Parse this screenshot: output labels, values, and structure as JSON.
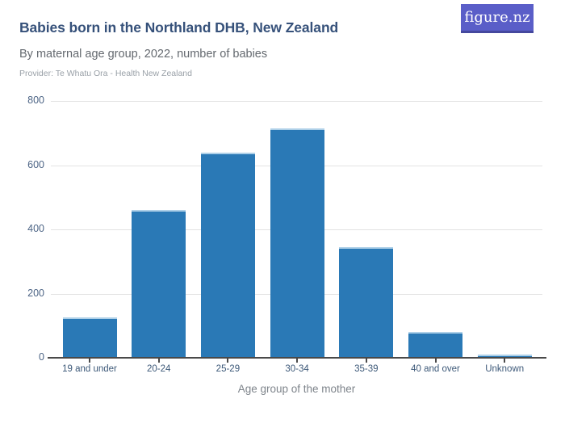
{
  "header": {
    "title": "Babies born in the Northland DHB, New Zealand",
    "subtitle": "By maternal age group, 2022, number of babies",
    "provider": "Provider: Te Whatu Ora - Health New Zealand"
  },
  "logo": {
    "text": "figure.nz"
  },
  "colors": {
    "bar": "#2a79b6",
    "bar_top_edge": "#aed0e8",
    "gridline": "#e3e3e3",
    "axis_line": "#494949",
    "title_text": "#36517a",
    "y_tick_label": "#4c6485",
    "x_tick_label": "#3c5878",
    "axis_title_text": "#7e848b",
    "logo_background": "#5a5ec8"
  },
  "chart_data": {
    "type": "bar",
    "title": "Babies born in the Northland DHB, New Zealand",
    "subtitle": "By maternal age group, 2022, number of babies",
    "categories": [
      "19 and under",
      "20-24",
      "25-29",
      "30-34",
      "35-39",
      "40 and over",
      "Unknown"
    ],
    "values": [
      125,
      460,
      640,
      715,
      345,
      80,
      10
    ],
    "xlabel": "Age group of the mother",
    "ylabel": "",
    "ylim": [
      0,
      800
    ],
    "yticks": [
      0,
      200,
      400,
      600,
      800
    ],
    "grid": true,
    "legend": "none",
    "bar_color": "#2a79b6"
  }
}
